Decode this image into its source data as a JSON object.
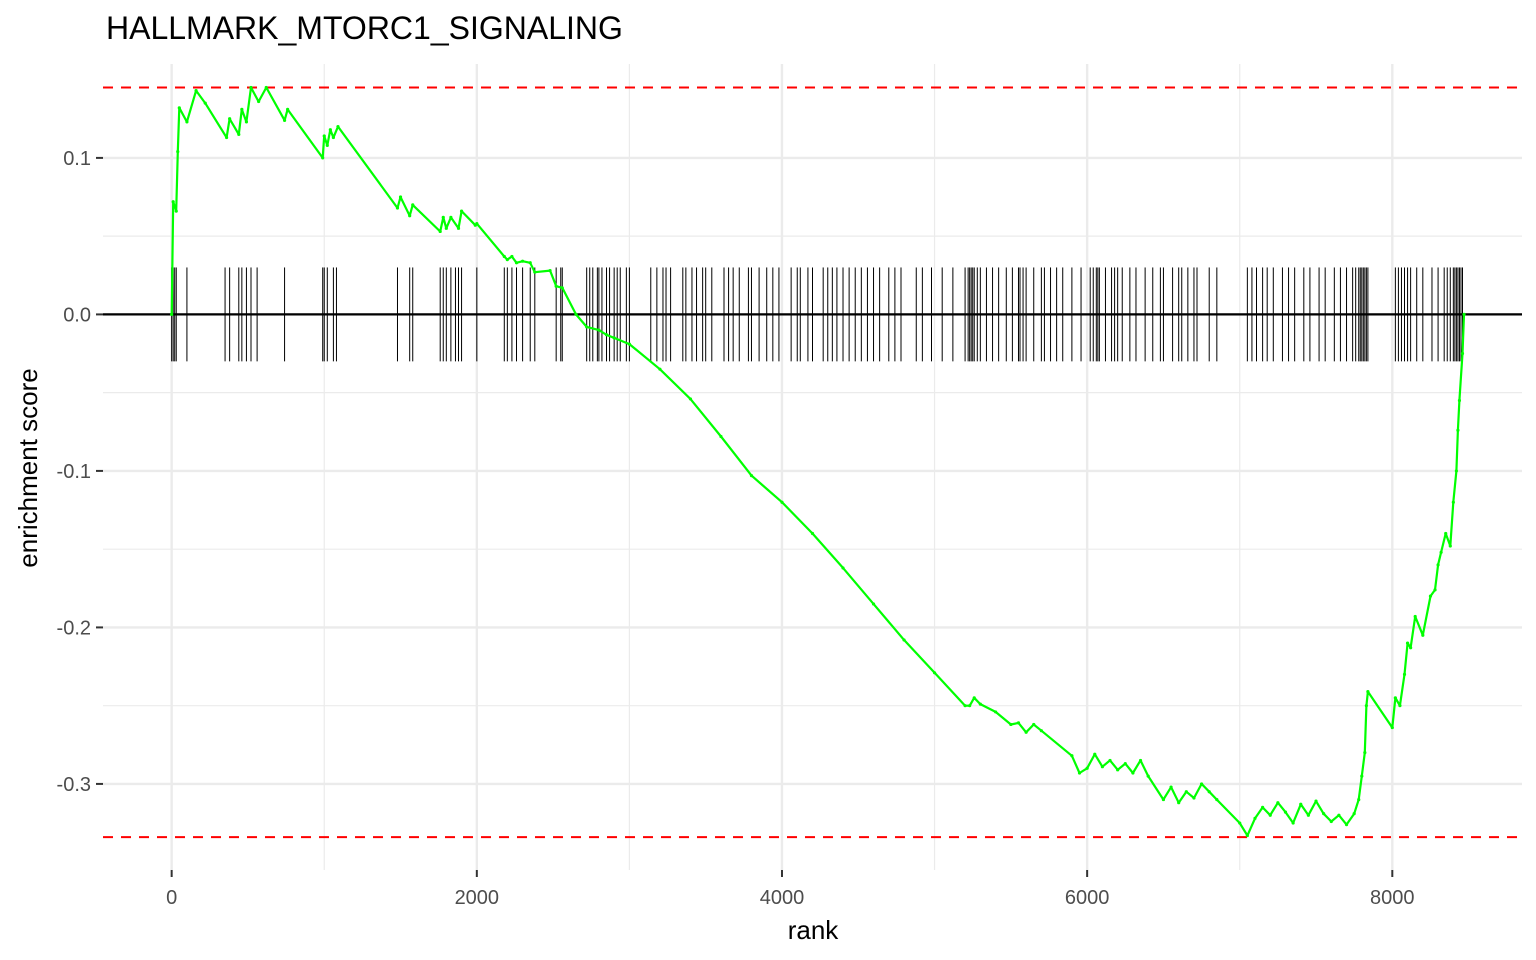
{
  "chart_data": {
    "type": "line",
    "title": "HALLMARK_MTORC1_SIGNALING",
    "xlabel": "rank",
    "ylabel": "enrichment score",
    "xlim": [
      -450,
      8850
    ],
    "ylim": [
      -0.355,
      0.16
    ],
    "x_ticks": [
      0,
      2000,
      4000,
      6000,
      8000
    ],
    "x_tick_labels": [
      "0",
      "2000",
      "4000",
      "6000",
      "8000"
    ],
    "y_ticks": [
      0.1,
      0.0,
      -0.1,
      -0.2,
      -0.3
    ],
    "y_tick_labels": [
      "0.1",
      "0.0",
      "-0.1",
      "-0.2",
      "-0.3"
    ],
    "grid": true,
    "colors": {
      "curve": "#00ff00",
      "threshold": "#ff0000",
      "zero_line": "#000000",
      "ticks": "#000000",
      "grid": "#ebebeb"
    },
    "threshold_lines": [
      0.145,
      -0.334
    ],
    "series": [
      {
        "x": [
          0,
          10,
          30,
          40,
          50,
          100,
          160,
          220,
          360,
          380,
          440,
          460,
          490,
          520,
          570,
          620,
          740,
          760,
          990,
          1000,
          1020,
          1040,
          1060,
          1090,
          1480,
          1500,
          1560,
          1580,
          1760,
          1780,
          1800,
          1830,
          1880,
          1900,
          1990,
          2000,
          2180,
          2200,
          2230,
          2260,
          2300,
          2350,
          2380,
          2480,
          2520,
          2560,
          2650,
          2720,
          2800,
          2850,
          2900,
          3000,
          3200,
          3400,
          3600,
          3800,
          4000,
          4200,
          4400,
          4600,
          4800,
          5000,
          5200,
          5230,
          5260,
          5300,
          5400,
          5500,
          5550,
          5600,
          5650,
          5700,
          5900,
          5950,
          6000,
          6050,
          6100,
          6150,
          6200,
          6250,
          6300,
          6350,
          6400,
          6500,
          6550,
          6600,
          6650,
          6700,
          6750,
          6800,
          6850,
          7000,
          7050,
          7100,
          7150,
          7200,
          7250,
          7300,
          7350,
          7400,
          7450,
          7500,
          7550,
          7600,
          7650,
          7700,
          7750,
          7780,
          7800,
          7820,
          7830,
          7840,
          8000,
          8020,
          8050,
          8080,
          8100,
          8120,
          8150,
          8200,
          8250,
          8280,
          8300,
          8320,
          8350,
          8380,
          8400,
          8420,
          8430,
          8440,
          8460,
          8470
        ],
        "y": [
          0.0,
          0.072,
          0.066,
          0.104,
          0.132,
          0.123,
          0.143,
          0.135,
          0.113,
          0.125,
          0.115,
          0.131,
          0.123,
          0.145,
          0.136,
          0.145,
          0.124,
          0.131,
          0.1,
          0.114,
          0.108,
          0.118,
          0.113,
          0.12,
          0.068,
          0.075,
          0.063,
          0.07,
          0.053,
          0.062,
          0.055,
          0.062,
          0.055,
          0.066,
          0.057,
          0.058,
          0.037,
          0.035,
          0.037,
          0.033,
          0.034,
          0.033,
          0.027,
          0.028,
          0.018,
          0.017,
          0.0,
          -0.008,
          -0.01,
          -0.013,
          -0.015,
          -0.019,
          -0.035,
          -0.054,
          -0.078,
          -0.103,
          -0.12,
          -0.14,
          -0.162,
          -0.185,
          -0.208,
          -0.229,
          -0.25,
          -0.25,
          -0.245,
          -0.249,
          -0.254,
          -0.262,
          -0.261,
          -0.267,
          -0.262,
          -0.266,
          -0.282,
          -0.293,
          -0.29,
          -0.281,
          -0.289,
          -0.285,
          -0.291,
          -0.287,
          -0.293,
          -0.285,
          -0.295,
          -0.31,
          -0.302,
          -0.312,
          -0.305,
          -0.309,
          -0.3,
          -0.305,
          -0.31,
          -0.325,
          -0.333,
          -0.322,
          -0.315,
          -0.32,
          -0.312,
          -0.318,
          -0.325,
          -0.313,
          -0.32,
          -0.311,
          -0.319,
          -0.324,
          -0.32,
          -0.326,
          -0.319,
          -0.31,
          -0.295,
          -0.28,
          -0.25,
          -0.241,
          -0.264,
          -0.245,
          -0.25,
          -0.23,
          -0.21,
          -0.213,
          -0.193,
          -0.205,
          -0.18,
          -0.176,
          -0.16,
          -0.152,
          -0.14,
          -0.148,
          -0.12,
          -0.1,
          -0.074,
          -0.055,
          -0.025,
          0.0
        ]
      }
    ],
    "gene_hits": [
      0,
      10,
      20,
      30,
      100,
      350,
      380,
      440,
      460,
      490,
      520,
      560,
      740,
      990,
      1000,
      1020,
      1060,
      1080,
      1480,
      1560,
      1580,
      1760,
      1780,
      1800,
      1830,
      1860,
      1880,
      1900,
      2000,
      2180,
      2200,
      2230,
      2260,
      2300,
      2350,
      2380,
      2520,
      2550,
      2560,
      2720,
      2740,
      2760,
      2790,
      2800,
      2820,
      2850,
      2870,
      2900,
      2920,
      2940,
      2980,
      3000,
      3140,
      3180,
      3220,
      3240,
      3270,
      3350,
      3370,
      3410,
      3440,
      3480,
      3500,
      3540,
      3620,
      3650,
      3680,
      3720,
      3780,
      3800,
      3850,
      3900,
      3940,
      3980,
      4060,
      4100,
      4120,
      4170,
      4200,
      4270,
      4300,
      4330,
      4360,
      4400,
      4440,
      4480,
      4520,
      4560,
      4600,
      4640,
      4700,
      4740,
      4780,
      4880,
      4920,
      4980,
      5050,
      5120,
      5200,
      5220,
      5230,
      5240,
      5250,
      5260,
      5280,
      5300,
      5340,
      5380,
      5420,
      5470,
      5510,
      5550,
      5560,
      5580,
      5600,
      5650,
      5700,
      5720,
      5760,
      5800,
      5840,
      5900,
      5960,
      6020,
      6040,
      6060,
      6070,
      6080,
      6120,
      6160,
      6180,
      6200,
      6230,
      6280,
      6320,
      6380,
      6430,
      6480,
      6500,
      6560,
      6600,
      6620,
      6660,
      6700,
      6720,
      6800,
      6850,
      7050,
      7080,
      7110,
      7150,
      7180,
      7220,
      7280,
      7320,
      7360,
      7420,
      7460,
      7520,
      7560,
      7620,
      7660,
      7700,
      7740,
      7760,
      7780,
      7790,
      7800,
      7810,
      7820,
      7830,
      7840,
      8020,
      8040,
      8060,
      8080,
      8100,
      8120,
      8160,
      8200,
      8260,
      8300,
      8340,
      8360,
      8380,
      8400,
      8410,
      8420,
      8430,
      8440,
      8450,
      8460
    ]
  }
}
